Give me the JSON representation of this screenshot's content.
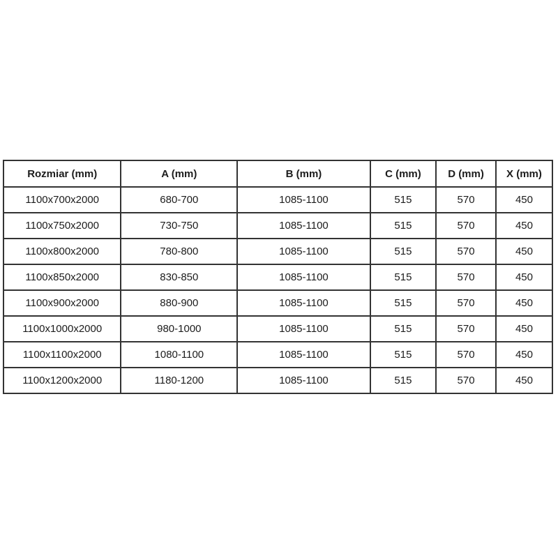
{
  "colors": {
    "background": "#ffffff",
    "border": "#333333",
    "text": "#1c1c1c"
  },
  "chart_data": {
    "type": "table",
    "title": "",
    "columns": [
      "Rozmiar (mm)",
      "A (mm)",
      "B (mm)",
      "C (mm)",
      "D (mm)",
      "X (mm)"
    ],
    "rows": [
      [
        "1100x700x2000",
        "680-700",
        "1085-1100",
        "515",
        "570",
        "450"
      ],
      [
        "1100x750x2000",
        "730-750",
        "1085-1100",
        "515",
        "570",
        "450"
      ],
      [
        "1100x800x2000",
        "780-800",
        "1085-1100",
        "515",
        "570",
        "450"
      ],
      [
        "1100x850x2000",
        "830-850",
        "1085-1100",
        "515",
        "570",
        "450"
      ],
      [
        "1100x900x2000",
        "880-900",
        "1085-1100",
        "515",
        "570",
        "450"
      ],
      [
        "1100x1000x2000",
        "980-1000",
        "1085-1100",
        "515",
        "570",
        "450"
      ],
      [
        "1100x1100x2000",
        "1080-1100",
        "1085-1100",
        "515",
        "570",
        "450"
      ],
      [
        "1100x1200x2000",
        "1180-1200",
        "1085-1100",
        "515",
        "570",
        "450"
      ]
    ]
  }
}
